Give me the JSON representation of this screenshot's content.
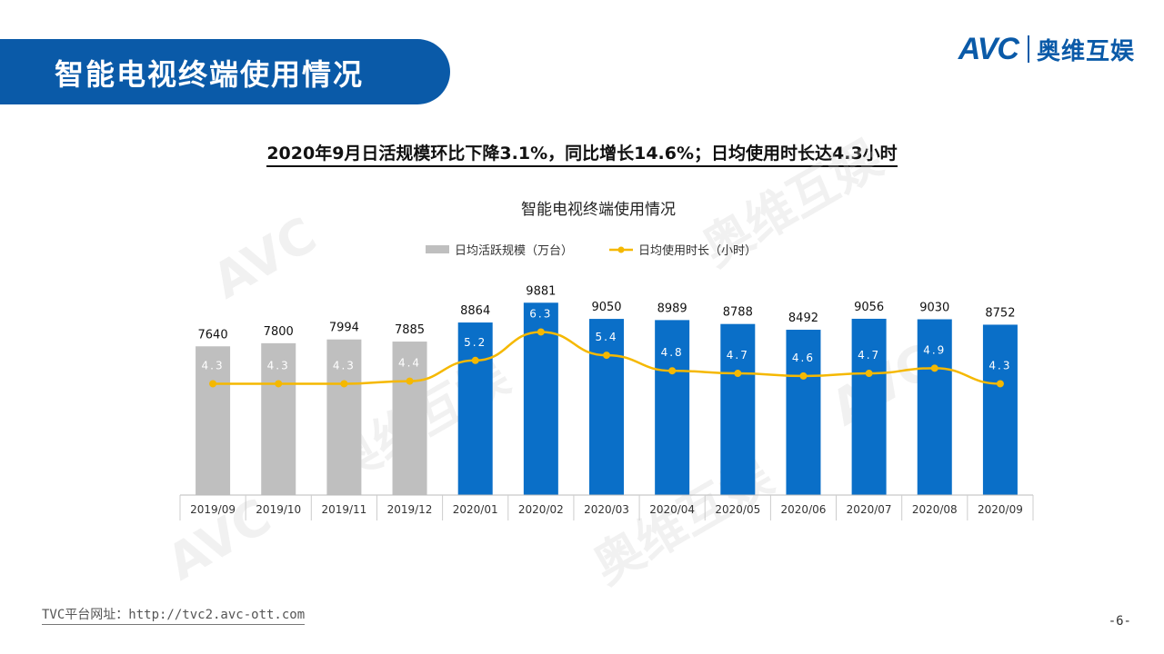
{
  "header": {
    "title": "智能电视终端使用情况"
  },
  "logo": {
    "brand": "AVC",
    "name_cn": "奥维互娱"
  },
  "subtitle": "2020年9月日活规模环比下降3.1%，同比增长14.6%；日均使用时长达4.3小时",
  "footer": {
    "url_text": "TVC平台网址：http://tvc2.avc-ott.com",
    "page": "-6-"
  },
  "colors": {
    "brand": "#0a5aa8",
    "bar_old": "#bfbfbf",
    "bar_new": "#0a6fc8",
    "line": "#f5b800"
  },
  "chart_data": {
    "type": "bar+line",
    "title": "智能电视终端使用情况",
    "categories": [
      "2019/09",
      "2019/10",
      "2019/11",
      "2019/12",
      "2020/01",
      "2020/02",
      "2020/03",
      "2020/04",
      "2020/05",
      "2020/06",
      "2020/07",
      "2020/08",
      "2020/09"
    ],
    "series": [
      {
        "name": "日均活跃规模（万台）",
        "type": "bar",
        "values": [
          7640,
          7800,
          7994,
          7885,
          8864,
          9881,
          9050,
          8989,
          8788,
          8492,
          9056,
          9030,
          8752
        ],
        "labels": [
          "7640",
          "7800",
          "7994",
          "7885",
          "8864",
          "9881",
          "9050",
          "8989",
          "8788",
          "8492",
          "9056",
          "9030",
          "8752"
        ]
      },
      {
        "name": "日均使用时长（小时）",
        "type": "line",
        "values": [
          4.3,
          4.3,
          4.3,
          4.4,
          5.2,
          6.3,
          5.4,
          4.8,
          4.7,
          4.6,
          4.7,
          4.9,
          4.3
        ],
        "labels": [
          "4.3",
          "4.3",
          "4.3",
          "4.4",
          "5.2",
          "6.3",
          "5.4",
          "4.8",
          "4.7",
          "4.6",
          "4.7",
          "4.9",
          "4.3"
        ]
      }
    ],
    "bar_axis_range": [
      0,
      10500
    ],
    "line_axis_range": [
      0,
      10
    ],
    "grid": false,
    "legend": "top-center"
  }
}
